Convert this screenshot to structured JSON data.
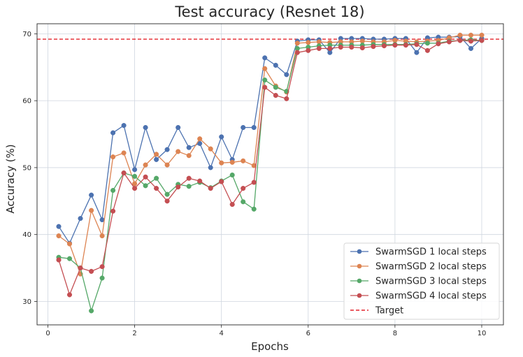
{
  "chart_data": {
    "type": "line",
    "title": "Test accuracy (Resnet 18)",
    "xlabel": "Epochs",
    "ylabel": "Accuracy (%)",
    "xlim": [
      -0.25,
      10.5
    ],
    "ylim": [
      26.5,
      71.5
    ],
    "xticks": [
      0,
      2,
      4,
      6,
      8,
      10
    ],
    "yticks": [
      30,
      40,
      50,
      60,
      70
    ],
    "grid": true,
    "legend_position": "lower-right",
    "x": [
      0.25,
      0.5,
      0.75,
      1.0,
      1.25,
      1.5,
      1.75,
      2.0,
      2.25,
      2.5,
      2.75,
      3.0,
      3.25,
      3.5,
      3.75,
      4.0,
      4.25,
      4.5,
      4.75,
      5.0,
      5.25,
      5.5,
      5.75,
      6.0,
      6.25,
      6.5,
      6.75,
      7.0,
      7.25,
      7.5,
      7.75,
      8.0,
      8.25,
      8.5,
      8.75,
      9.0,
      9.25,
      9.5,
      9.75,
      10.0
    ],
    "series": [
      {
        "name": "SwarmSGD 1 local steps",
        "color": "#4c72b0",
        "values": [
          41.2,
          38.7,
          42.4,
          45.9,
          42.2,
          55.2,
          56.3,
          49.7,
          56.0,
          51.2,
          52.7,
          56.0,
          53.0,
          53.6,
          50.0,
          54.6,
          51.2,
          56.0,
          56.0,
          66.4,
          65.3,
          63.9,
          68.9,
          69.1,
          69.1,
          67.2,
          69.3,
          69.3,
          69.3,
          69.2,
          69.2,
          69.3,
          69.3,
          67.2,
          69.4,
          69.5,
          69.5,
          69.6,
          67.8,
          69.3
        ]
      },
      {
        "name": "SwarmSGD 2 local steps",
        "color": "#dd8452",
        "values": [
          39.8,
          38.6,
          34.1,
          43.6,
          39.8,
          51.6,
          52.2,
          47.6,
          50.4,
          52.0,
          50.4,
          52.4,
          51.8,
          54.3,
          52.8,
          50.7,
          50.8,
          51.0,
          50.3,
          64.8,
          62.2,
          61.3,
          68.6,
          68.7,
          68.8,
          68.7,
          68.8,
          68.8,
          68.9,
          68.8,
          68.8,
          69.0,
          68.9,
          68.8,
          68.9,
          69.0,
          69.4,
          69.8,
          69.8,
          69.8
        ]
      },
      {
        "name": "SwarmSGD 3 local steps",
        "color": "#55a868",
        "values": [
          36.6,
          36.4,
          35.0,
          28.6,
          33.5,
          46.6,
          49.2,
          48.7,
          47.3,
          48.4,
          46.0,
          47.5,
          47.2,
          47.8,
          47.0,
          48.0,
          48.9,
          44.9,
          43.8,
          63.1,
          62.0,
          61.4,
          67.8,
          68.0,
          68.2,
          68.3,
          68.3,
          68.3,
          68.3,
          68.4,
          68.4,
          68.4,
          68.4,
          68.5,
          68.6,
          68.6,
          68.9,
          69.0,
          69.1,
          69.0
        ]
      },
      {
        "name": "SwarmSGD 4 local steps",
        "color": "#c44e52",
        "values": [
          36.2,
          31.0,
          35.0,
          34.5,
          35.2,
          43.5,
          49.2,
          46.9,
          48.6,
          46.9,
          45.0,
          47.1,
          48.4,
          48.0,
          46.9,
          47.9,
          44.5,
          46.9,
          47.8,
          62.0,
          60.8,
          60.3,
          67.2,
          67.5,
          67.8,
          67.8,
          68.0,
          68.0,
          67.9,
          68.1,
          68.2,
          68.3,
          68.3,
          68.4,
          67.5,
          68.5,
          68.8,
          69.0,
          68.9,
          69.0
        ]
      }
    ],
    "reference_lines": [
      {
        "name": "Target",
        "y": 69.2,
        "color": "#e3242b",
        "style": "dashed"
      }
    ]
  }
}
